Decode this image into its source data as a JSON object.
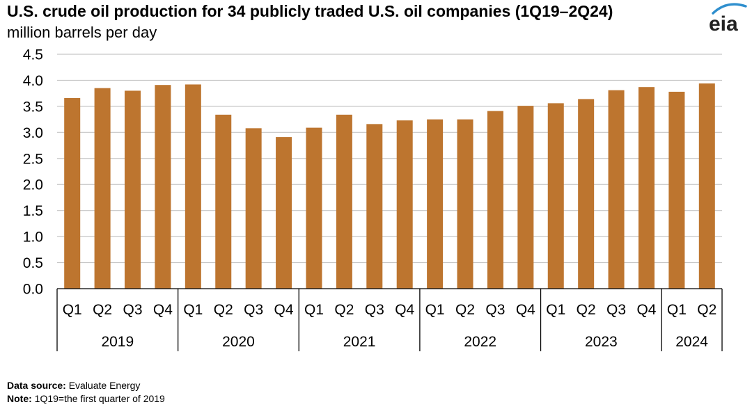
{
  "header": {
    "title": "U.S. crude oil production for 34 publicly traded U.S. oil companies (1Q19–2Q24)",
    "subtitle": "million barrels per day",
    "logo_text": "eia",
    "logo_icon": "eia-leaf-arc-icon"
  },
  "footer": {
    "source_label": "Data source:",
    "source_value": " Evaluate Energy",
    "note_label": "Note:",
    "note_value": " 1Q19=the first quarter of 2019"
  },
  "colors": {
    "bar": "#BD752F",
    "grid": "#C6C6C6",
    "axis": "#000000",
    "logo_accent": "#2F8FCE"
  },
  "chart_data": {
    "type": "bar",
    "title": "U.S. crude oil production for 34 publicly traded U.S. oil companies (1Q19–2Q24)",
    "ylabel": "million barrels per day",
    "xlabel": "",
    "ylim": [
      0,
      4.5
    ],
    "yticks": [
      "0.0",
      "0.5",
      "1.0",
      "1.5",
      "2.0",
      "2.5",
      "3.0",
      "3.5",
      "4.0",
      "4.5"
    ],
    "grid": true,
    "legend": "none",
    "categories": [
      "Q1",
      "Q2",
      "Q3",
      "Q4",
      "Q1",
      "Q2",
      "Q3",
      "Q4",
      "Q1",
      "Q2",
      "Q3",
      "Q4",
      "Q1",
      "Q2",
      "Q3",
      "Q4",
      "Q1",
      "Q2",
      "Q3",
      "Q4",
      "Q1",
      "Q2"
    ],
    "groups": [
      {
        "label": "2019",
        "count": 4
      },
      {
        "label": "2020",
        "count": 4
      },
      {
        "label": "2021",
        "count": 4
      },
      {
        "label": "2022",
        "count": 4
      },
      {
        "label": "2023",
        "count": 4
      },
      {
        "label": "2024",
        "count": 2
      }
    ],
    "values": [
      3.66,
      3.85,
      3.8,
      3.91,
      3.92,
      3.34,
      3.08,
      2.91,
      3.09,
      3.34,
      3.16,
      3.23,
      3.25,
      3.25,
      3.41,
      3.51,
      3.56,
      3.64,
      3.81,
      3.87,
      3.78,
      3.94
    ]
  }
}
